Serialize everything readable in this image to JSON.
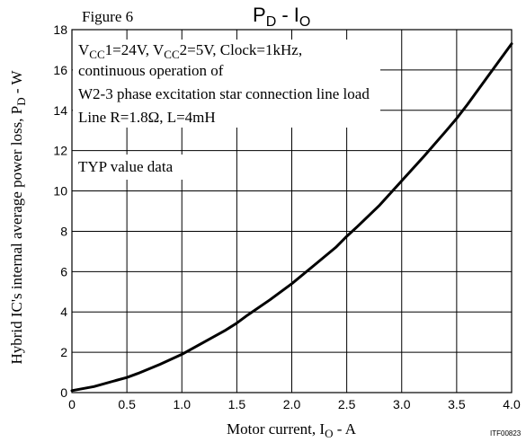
{
  "figure_label": "Figure 6",
  "title": {
    "main": "P",
    "sub1": "D",
    "sep": " - I",
    "sub2": "O"
  },
  "notes": {
    "line1": {
      "v1": "V",
      "v1sub": "CC",
      "part1": "1=24V, V",
      "v2sub": "CC",
      "part2": "2=5V, Clock=1kHz,"
    },
    "line2": "continuous operation of",
    "line3": "W2-3 phase excitation star connection line load",
    "line4": "Line R=1.8Ω, L=4mH",
    "line5": "TYP value data"
  },
  "ylabel": {
    "text": "Hybrid IC's internal average power loss, P",
    "sub": "D",
    "unit": " - W"
  },
  "xlabel": {
    "text": "Motor current, I",
    "sub": "O",
    "unit": " - A"
  },
  "footer_code": "ITF00823",
  "chart_data": {
    "type": "line",
    "xlim": [
      0,
      4.0
    ],
    "ylim": [
      0,
      18
    ],
    "x_ticks": [
      "0",
      "0.5",
      "1.0",
      "1.5",
      "2.0",
      "2.5",
      "3.0",
      "3.5",
      "4.0"
    ],
    "x_tick_values": [
      0,
      0.5,
      1.0,
      1.5,
      2.0,
      2.5,
      3.0,
      3.5,
      4.0
    ],
    "y_ticks": [
      "0",
      "2",
      "4",
      "6",
      "8",
      "10",
      "12",
      "14",
      "16",
      "18"
    ],
    "y_tick_values": [
      0,
      2,
      4,
      6,
      8,
      10,
      12,
      14,
      16,
      18
    ],
    "grid": true,
    "series": [
      {
        "x": [
          0,
          0.2,
          0.4,
          0.5,
          0.6,
          0.8,
          1.0,
          1.2,
          1.4,
          1.5,
          1.6,
          1.8,
          2.0,
          2.2,
          2.4,
          2.5,
          2.6,
          2.8,
          3.0,
          3.2,
          3.4,
          3.5,
          3.6,
          3.8,
          4.0
        ],
        "y": [
          0.1,
          0.3,
          0.6,
          0.75,
          0.95,
          1.4,
          1.9,
          2.5,
          3.1,
          3.45,
          3.85,
          4.6,
          5.4,
          6.3,
          7.2,
          7.75,
          8.25,
          9.3,
          10.5,
          11.7,
          12.95,
          13.6,
          14.3,
          15.8,
          17.3
        ]
      }
    ]
  }
}
